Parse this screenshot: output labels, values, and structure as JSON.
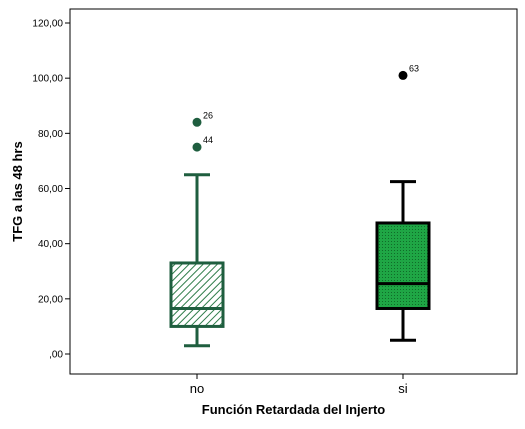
{
  "chart_data": {
    "type": "boxplot",
    "title": "",
    "xlabel": "Función Retardada del Injerto",
    "ylabel": "TFG a las 48 hrs",
    "categories": [
      "no",
      "si"
    ],
    "ylim": [
      -4,
      127
    ],
    "yticks": [
      0,
      20,
      40,
      60,
      80,
      100,
      120
    ],
    "ytick_labels": [
      ",00",
      "20,00",
      "40,00",
      "60,00",
      "80,00",
      "100,00",
      "120,00"
    ],
    "grid": false,
    "legend": "none",
    "boxes": [
      {
        "category": "no",
        "whisker_low": 3,
        "q1": 10,
        "median": 16.5,
        "q3": 33,
        "whisker_high": 65,
        "fill_pattern": "diagonal-hatch",
        "color": "#1f5e3f",
        "outliers": [
          {
            "label": "26",
            "value": 84
          },
          {
            "label": "44",
            "value": 75
          }
        ]
      },
      {
        "category": "si",
        "whisker_low": 5,
        "q1": 16.5,
        "median": 25.5,
        "q3": 47.5,
        "whisker_high": 62.5,
        "fill_pattern": "dotted",
        "color": "#000000",
        "outliers": [
          {
            "label": "63",
            "value": 101
          }
        ]
      }
    ]
  },
  "colors": {
    "box_fill_no": "#ffffff",
    "box_fill_si": "#1fa645",
    "hatch_no": "#2f7d4a",
    "stroke_no": "#1f5e3f",
    "stroke_si": "#000000",
    "outlier_no": "#1f5e3f",
    "outlier_si": "#000000"
  }
}
